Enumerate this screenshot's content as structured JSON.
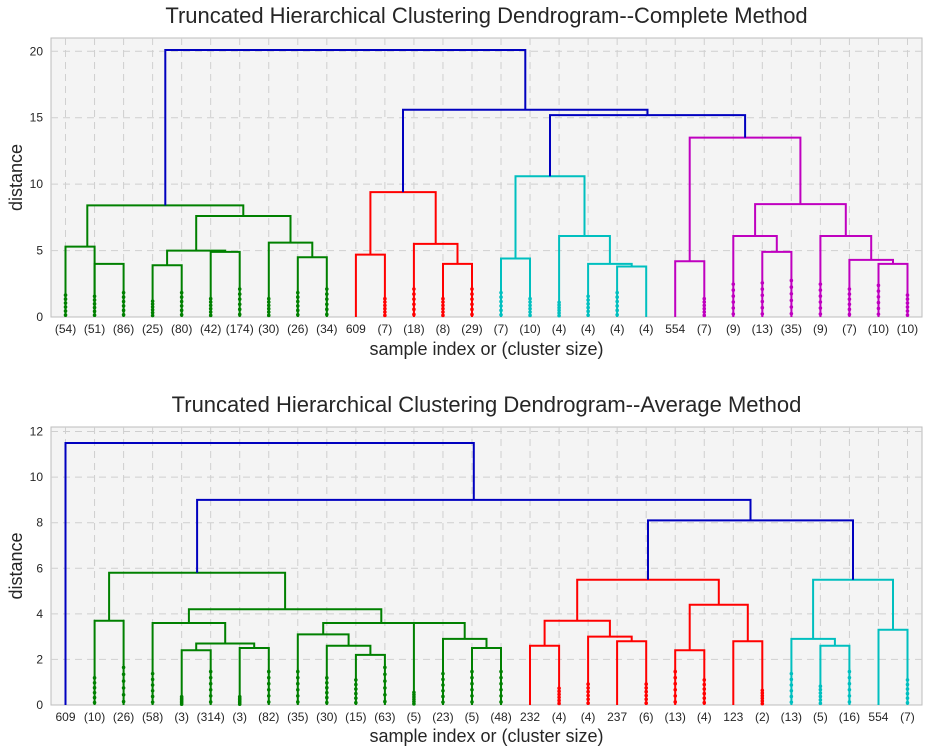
{
  "chart_data": [
    {
      "type": "dendrogram",
      "title": "Truncated Hierarchical Clustering Dendrogram--Complete Method",
      "xlabel": "sample index or (cluster size)",
      "ylabel": "distance",
      "ylim": [
        0,
        21
      ],
      "yticks": [
        "0",
        "5",
        "10",
        "15",
        "20"
      ],
      "grid": true,
      "leaves": [
        "(54)",
        "(51)",
        "(86)",
        "(25)",
        "(80)",
        "(42)",
        "(174)",
        "(30)",
        "(26)",
        "(34)",
        "609",
        "(7)",
        "(18)",
        "(8)",
        "(29)",
        "(7)",
        "(10)",
        "(4)",
        "(4)",
        "(4)",
        "(4)",
        "554",
        "(7)",
        "(9)",
        "(13)",
        "(35)",
        "(9)",
        "(7)",
        "(10)",
        "(10)"
      ],
      "links": [
        {
          "l": 0,
          "r": 1,
          "h": 5.3,
          "c": "#008000"
        },
        {
          "l": 3,
          "r": 4,
          "h": 3.9,
          "c": "#008000"
        },
        {
          "l": 5,
          "r": 6,
          "h": 4.9,
          "c": "#008000"
        },
        {
          "l": 8,
          "r": 9,
          "h": 4.5,
          "c": "#008000"
        },
        {
          "l": 12,
          "r": 13,
          "h": 4.0,
          "c": "#ff0000"
        },
        {
          "l": 15,
          "r": 16,
          "h": 4.4,
          "c": "#00bfbf"
        },
        {
          "l": 19,
          "r": 20,
          "h": 3.8,
          "c": "#00bfbf"
        },
        {
          "l": 22,
          "r": 23,
          "h": 4.2,
          "c": "#bf00bf"
        },
        {
          "l": 24,
          "r": 25,
          "h": 4.9,
          "c": "#bf00bf"
        },
        {
          "l": 28,
          "r": 29,
          "h": 4.0,
          "c": "#bf00bf"
        },
        {
          "l": "n0",
          "r": 2,
          "h": 4.0,
          "c": "#008000"
        },
        {
          "l": "n1",
          "r": "n2",
          "h": 5.0,
          "c": "#008000"
        },
        {
          "l": 7,
          "r": "n3",
          "h": 5.6,
          "c": "#008000"
        },
        {
          "l": "n11",
          "r": "n12",
          "h": 7.6,
          "c": "#008000"
        },
        {
          "l": "n10",
          "r": "n13",
          "h": 8.4,
          "c": "#008000"
        },
        {
          "l": 10,
          "r": 11,
          "h": 4.7,
          "c": "#ff0000"
        },
        {
          "l": 12,
          "r": "n4",
          "h": 5.5,
          "c": "#ff0000"
        },
        {
          "l": "n15",
          "r": "n16",
          "h": 9.4,
          "c": "#ff0000"
        },
        {
          "l": 18,
          "r": "n6",
          "h": 4.0,
          "c": "#00bfbf"
        },
        {
          "l": 17,
          "r": "n18",
          "h": 6.1,
          "c": "#00bfbf"
        },
        {
          "l": "n5",
          "r": "n19",
          "h": 10.6,
          "c": "#00bfbf"
        },
        {
          "l": 21,
          "r": "n7",
          "h": 4.2,
          "c": "#bf00bf"
        },
        {
          "l": "n21",
          "r": "n8",
          "h": 6.1,
          "c": "#bf00bf"
        },
        {
          "l": 27,
          "r": "n9",
          "h": 4.3,
          "c": "#bf00bf"
        },
        {
          "l": 26,
          "r": "n23",
          "h": 6.1,
          "c": "#bf00bf"
        },
        {
          "l": "n22",
          "r": "n24",
          "h": 8.5,
          "c": "#bf00bf"
        },
        {
          "l": "n25a",
          "r": "n25",
          "h": 13.5,
          "c": "#bf00bf"
        },
        {
          "l": "n20",
          "r": "n26",
          "h": 15.2,
          "c": "#0000bf"
        },
        {
          "l": "n17",
          "r": "n27",
          "h": 15.6,
          "c": "#0000bf"
        },
        {
          "l": "n14",
          "r": "n28",
          "h": 20.1,
          "c": "#0000bf"
        }
      ],
      "leaf_colors": [
        "#008000",
        "#008000",
        "#008000",
        "#008000",
        "#008000",
        "#008000",
        "#008000",
        "#008000",
        "#008000",
        "#008000",
        "#ff0000",
        "#ff0000",
        "#ff0000",
        "#ff0000",
        "#ff0000",
        "#00bfbf",
        "#00bfbf",
        "#00bfbf",
        "#00bfbf",
        "#00bfbf",
        "#00bfbf",
        "#bf00bf",
        "#bf00bf",
        "#bf00bf",
        "#bf00bf",
        "#bf00bf",
        "#bf00bf",
        "#bf00bf",
        "#bf00bf",
        "#bf00bf"
      ]
    },
    {
      "type": "dendrogram",
      "title": "Truncated Hierarchical Clustering Dendrogram--Average Method",
      "xlabel": "sample index or (cluster size)",
      "ylabel": "distance",
      "ylim": [
        0,
        12.2
      ],
      "yticks": [
        "0",
        "2",
        "4",
        "6",
        "8",
        "10",
        "12"
      ],
      "grid": true,
      "leaves": [
        "609",
        "(10)",
        "(26)",
        "(58)",
        "(3)",
        "(314)",
        "(3)",
        "(82)",
        "(35)",
        "(30)",
        "(15)",
        "(63)",
        "(5)",
        "(23)",
        "(5)",
        "(48)",
        "232",
        "(4)",
        "(4)",
        "237",
        "(6)",
        "(13)",
        "(4)",
        "123",
        "(2)",
        "(13)",
        "(5)",
        "(16)",
        "554",
        "(7)"
      ]
    }
  ]
}
